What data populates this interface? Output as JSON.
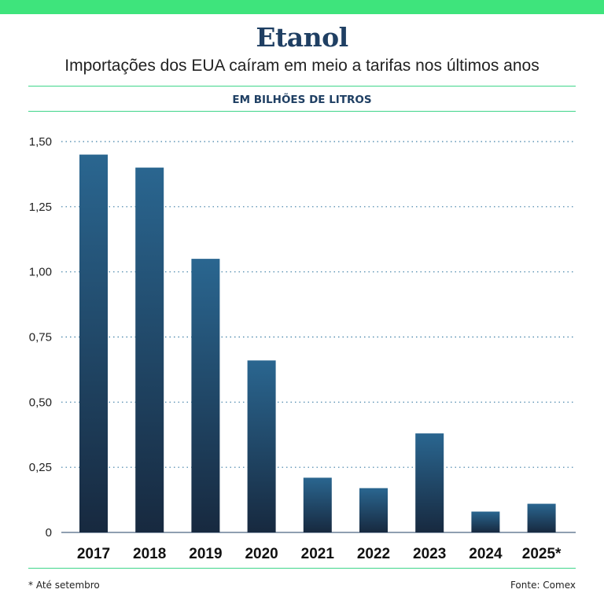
{
  "header": {
    "title": "Etanol",
    "subtitle": "Importações dos EUA caíram em meio a tarifas nos últimos anos",
    "unit_label": "EM BILHÕES DE LITROS"
  },
  "footer": {
    "footnote": "* Até setembro",
    "source": "Fonte: Comex"
  },
  "colors": {
    "accent_bar": "#3ee47c",
    "rule": "#3fd58a",
    "title": "#1f3f63",
    "bar_top": "#2a6690",
    "bar_bottom": "#17293f",
    "grid": "#3f7fa6"
  },
  "chart_data": {
    "type": "bar",
    "title": "",
    "xlabel": "",
    "ylabel": "",
    "categories": [
      "2017",
      "2018",
      "2019",
      "2020",
      "2021",
      "2022",
      "2023",
      "2024",
      "2025*"
    ],
    "values": [
      1.45,
      1.4,
      1.05,
      0.66,
      0.21,
      0.17,
      0.38,
      0.08,
      0.11
    ],
    "ylim": [
      0,
      1.5
    ],
    "yticks": [
      0,
      0.25,
      0.5,
      0.75,
      1.0,
      1.25,
      1.5
    ],
    "ytick_labels": [
      "0",
      "0,25",
      "0,50",
      "0,75",
      "1,00",
      "1,25",
      "1,50"
    ],
    "grid": true,
    "grid_style": "dotted"
  }
}
